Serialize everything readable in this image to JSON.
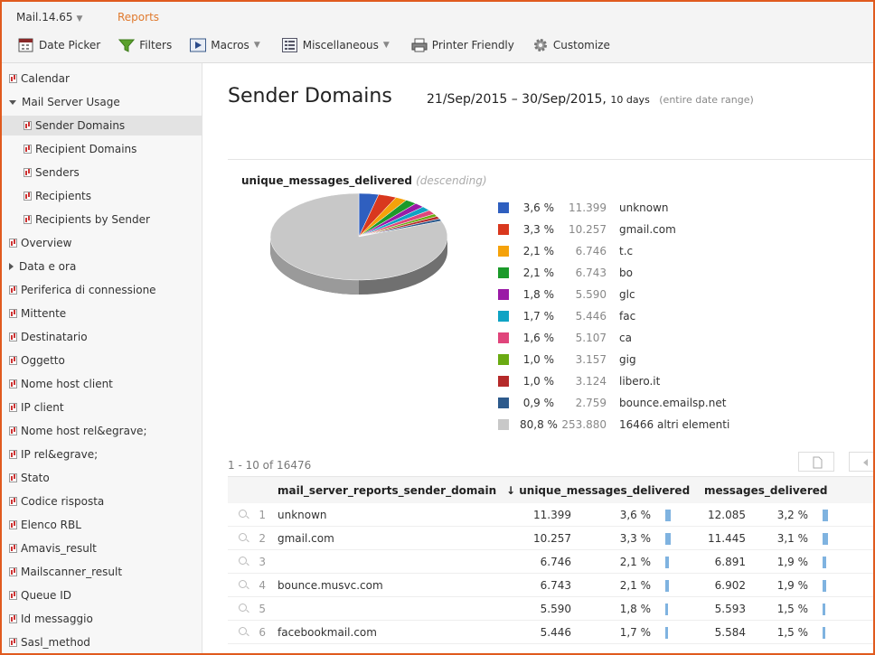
{
  "app": {
    "name": "Mail.14.65",
    "reports_label": "Reports"
  },
  "toolbar": {
    "date_picker": "Date Picker",
    "filters": "Filters",
    "macros": "Macros",
    "misc": "Miscellaneous",
    "printer": "Printer Friendly",
    "customize": "Customize"
  },
  "sidebar": {
    "items": [
      {
        "label": "Calendar",
        "indent": 0,
        "type": "report"
      },
      {
        "label": "Mail Server Usage",
        "indent": 0,
        "type": "expanded"
      },
      {
        "label": "Sender Domains",
        "indent": 1,
        "type": "report",
        "active": true
      },
      {
        "label": "Recipient Domains",
        "indent": 1,
        "type": "report"
      },
      {
        "label": "Senders",
        "indent": 1,
        "type": "report"
      },
      {
        "label": "Recipients",
        "indent": 1,
        "type": "report"
      },
      {
        "label": "Recipients by Sender",
        "indent": 1,
        "type": "report"
      },
      {
        "label": "Overview",
        "indent": 0,
        "type": "report"
      },
      {
        "label": "Data e ora",
        "indent": 0,
        "type": "collapsed"
      },
      {
        "label": "Periferica di connessione",
        "indent": 0,
        "type": "report"
      },
      {
        "label": "Mittente",
        "indent": 0,
        "type": "report"
      },
      {
        "label": "Destinatario",
        "indent": 0,
        "type": "report"
      },
      {
        "label": "Oggetto",
        "indent": 0,
        "type": "report"
      },
      {
        "label": "Nome host client",
        "indent": 0,
        "type": "report"
      },
      {
        "label": "IP client",
        "indent": 0,
        "type": "report"
      },
      {
        "label": "Nome host rel&egrave;",
        "indent": 0,
        "type": "report"
      },
      {
        "label": "IP rel&egrave;",
        "indent": 0,
        "type": "report"
      },
      {
        "label": "Stato",
        "indent": 0,
        "type": "report"
      },
      {
        "label": "Codice risposta",
        "indent": 0,
        "type": "report"
      },
      {
        "label": "Elenco RBL",
        "indent": 0,
        "type": "report"
      },
      {
        "label": "Amavis_result",
        "indent": 0,
        "type": "report"
      },
      {
        "label": "Mailscanner_result",
        "indent": 0,
        "type": "report"
      },
      {
        "label": "Queue ID",
        "indent": 0,
        "type": "report"
      },
      {
        "label": "Id messaggio",
        "indent": 0,
        "type": "report"
      },
      {
        "label": "Sasl_method",
        "indent": 0,
        "type": "report"
      }
    ]
  },
  "main": {
    "title": "Sender Domains",
    "date_range": "21/Sep/2015 – 30/Sep/2015,",
    "days": "10 days",
    "entire": "(entire date range)"
  },
  "chart_data": {
    "type": "pie",
    "title": "unique_messages_delivered",
    "subtitle": "(descending)",
    "slices": [
      {
        "pct": "3,6 %",
        "value": "11.399",
        "label": "unknown",
        "color": "#2f5fbf",
        "share": 3.6
      },
      {
        "pct": "3,3 %",
        "value": "10.257",
        "label": "gmail.com",
        "color": "#d9381e",
        "share": 3.3
      },
      {
        "pct": "2,1 %",
        "value": "6.746",
        "label": "t.c",
        "color": "#f5a20a",
        "share": 2.1
      },
      {
        "pct": "2,1 %",
        "value": "6.743",
        "label": "bo",
        "color": "#1b9a2a",
        "share": 2.1
      },
      {
        "pct": "1,8 %",
        "value": "5.590",
        "label": "glc",
        "color": "#9a1aa6",
        "share": 1.8
      },
      {
        "pct": "1,7 %",
        "value": "5.446",
        "label": "fac",
        "color": "#0fa3c4",
        "share": 1.7
      },
      {
        "pct": "1,6 %",
        "value": "5.107",
        "label": "ca",
        "color": "#e0457b",
        "share": 1.6
      },
      {
        "pct": "1,0 %",
        "value": "3.157",
        "label": "gig",
        "color": "#6aaa12",
        "share": 1.0
      },
      {
        "pct": "1,0 %",
        "value": "3.124",
        "label": "libero.it",
        "color": "#b52a2a",
        "share": 1.0
      },
      {
        "pct": "0,9 %",
        "value": "2.759",
        "label": "bounce.emailsp.net",
        "color": "#2d5a8c",
        "share": 0.9
      },
      {
        "pct": "80,8 %",
        "value": "253.880",
        "label": "16466 altri elementi",
        "color": "#c8c8c8",
        "share": 80.8
      }
    ]
  },
  "table": {
    "pager": "1 - 10 of 16476",
    "col_domain": "mail_server_reports_sender_domain",
    "col_umd": "↓ unique_messages_delivered",
    "col_md": "messages_delivered",
    "rows": [
      {
        "n": "1",
        "domain": "unknown",
        "umd": "11.399",
        "umd_pct": "3,6 %",
        "md": "12.085",
        "md_pct": "3,2 %",
        "umd_share": 3.6,
        "md_share": 3.2
      },
      {
        "n": "2",
        "domain": "gmail.com",
        "umd": "10.257",
        "umd_pct": "3,3 %",
        "md": "11.445",
        "md_pct": "3,1 %",
        "umd_share": 3.3,
        "md_share": 3.1
      },
      {
        "n": "3",
        "domain": "",
        "umd": "6.746",
        "umd_pct": "2,1 %",
        "md": "6.891",
        "md_pct": "1,9 %",
        "umd_share": 2.1,
        "md_share": 1.9
      },
      {
        "n": "4",
        "domain": "bounce.musvc.com",
        "umd": "6.743",
        "umd_pct": "2,1 %",
        "md": "6.902",
        "md_pct": "1,9 %",
        "umd_share": 2.1,
        "md_share": 1.9
      },
      {
        "n": "5",
        "domain": "",
        "umd": "5.590",
        "umd_pct": "1,8 %",
        "md": "5.593",
        "md_pct": "1,5 %",
        "umd_share": 1.8,
        "md_share": 1.5
      },
      {
        "n": "6",
        "domain": "facebookmail.com",
        "umd": "5.446",
        "umd_pct": "1,7 %",
        "md": "5.584",
        "md_pct": "1,5 %",
        "umd_share": 1.7,
        "md_share": 1.5
      }
    ]
  }
}
